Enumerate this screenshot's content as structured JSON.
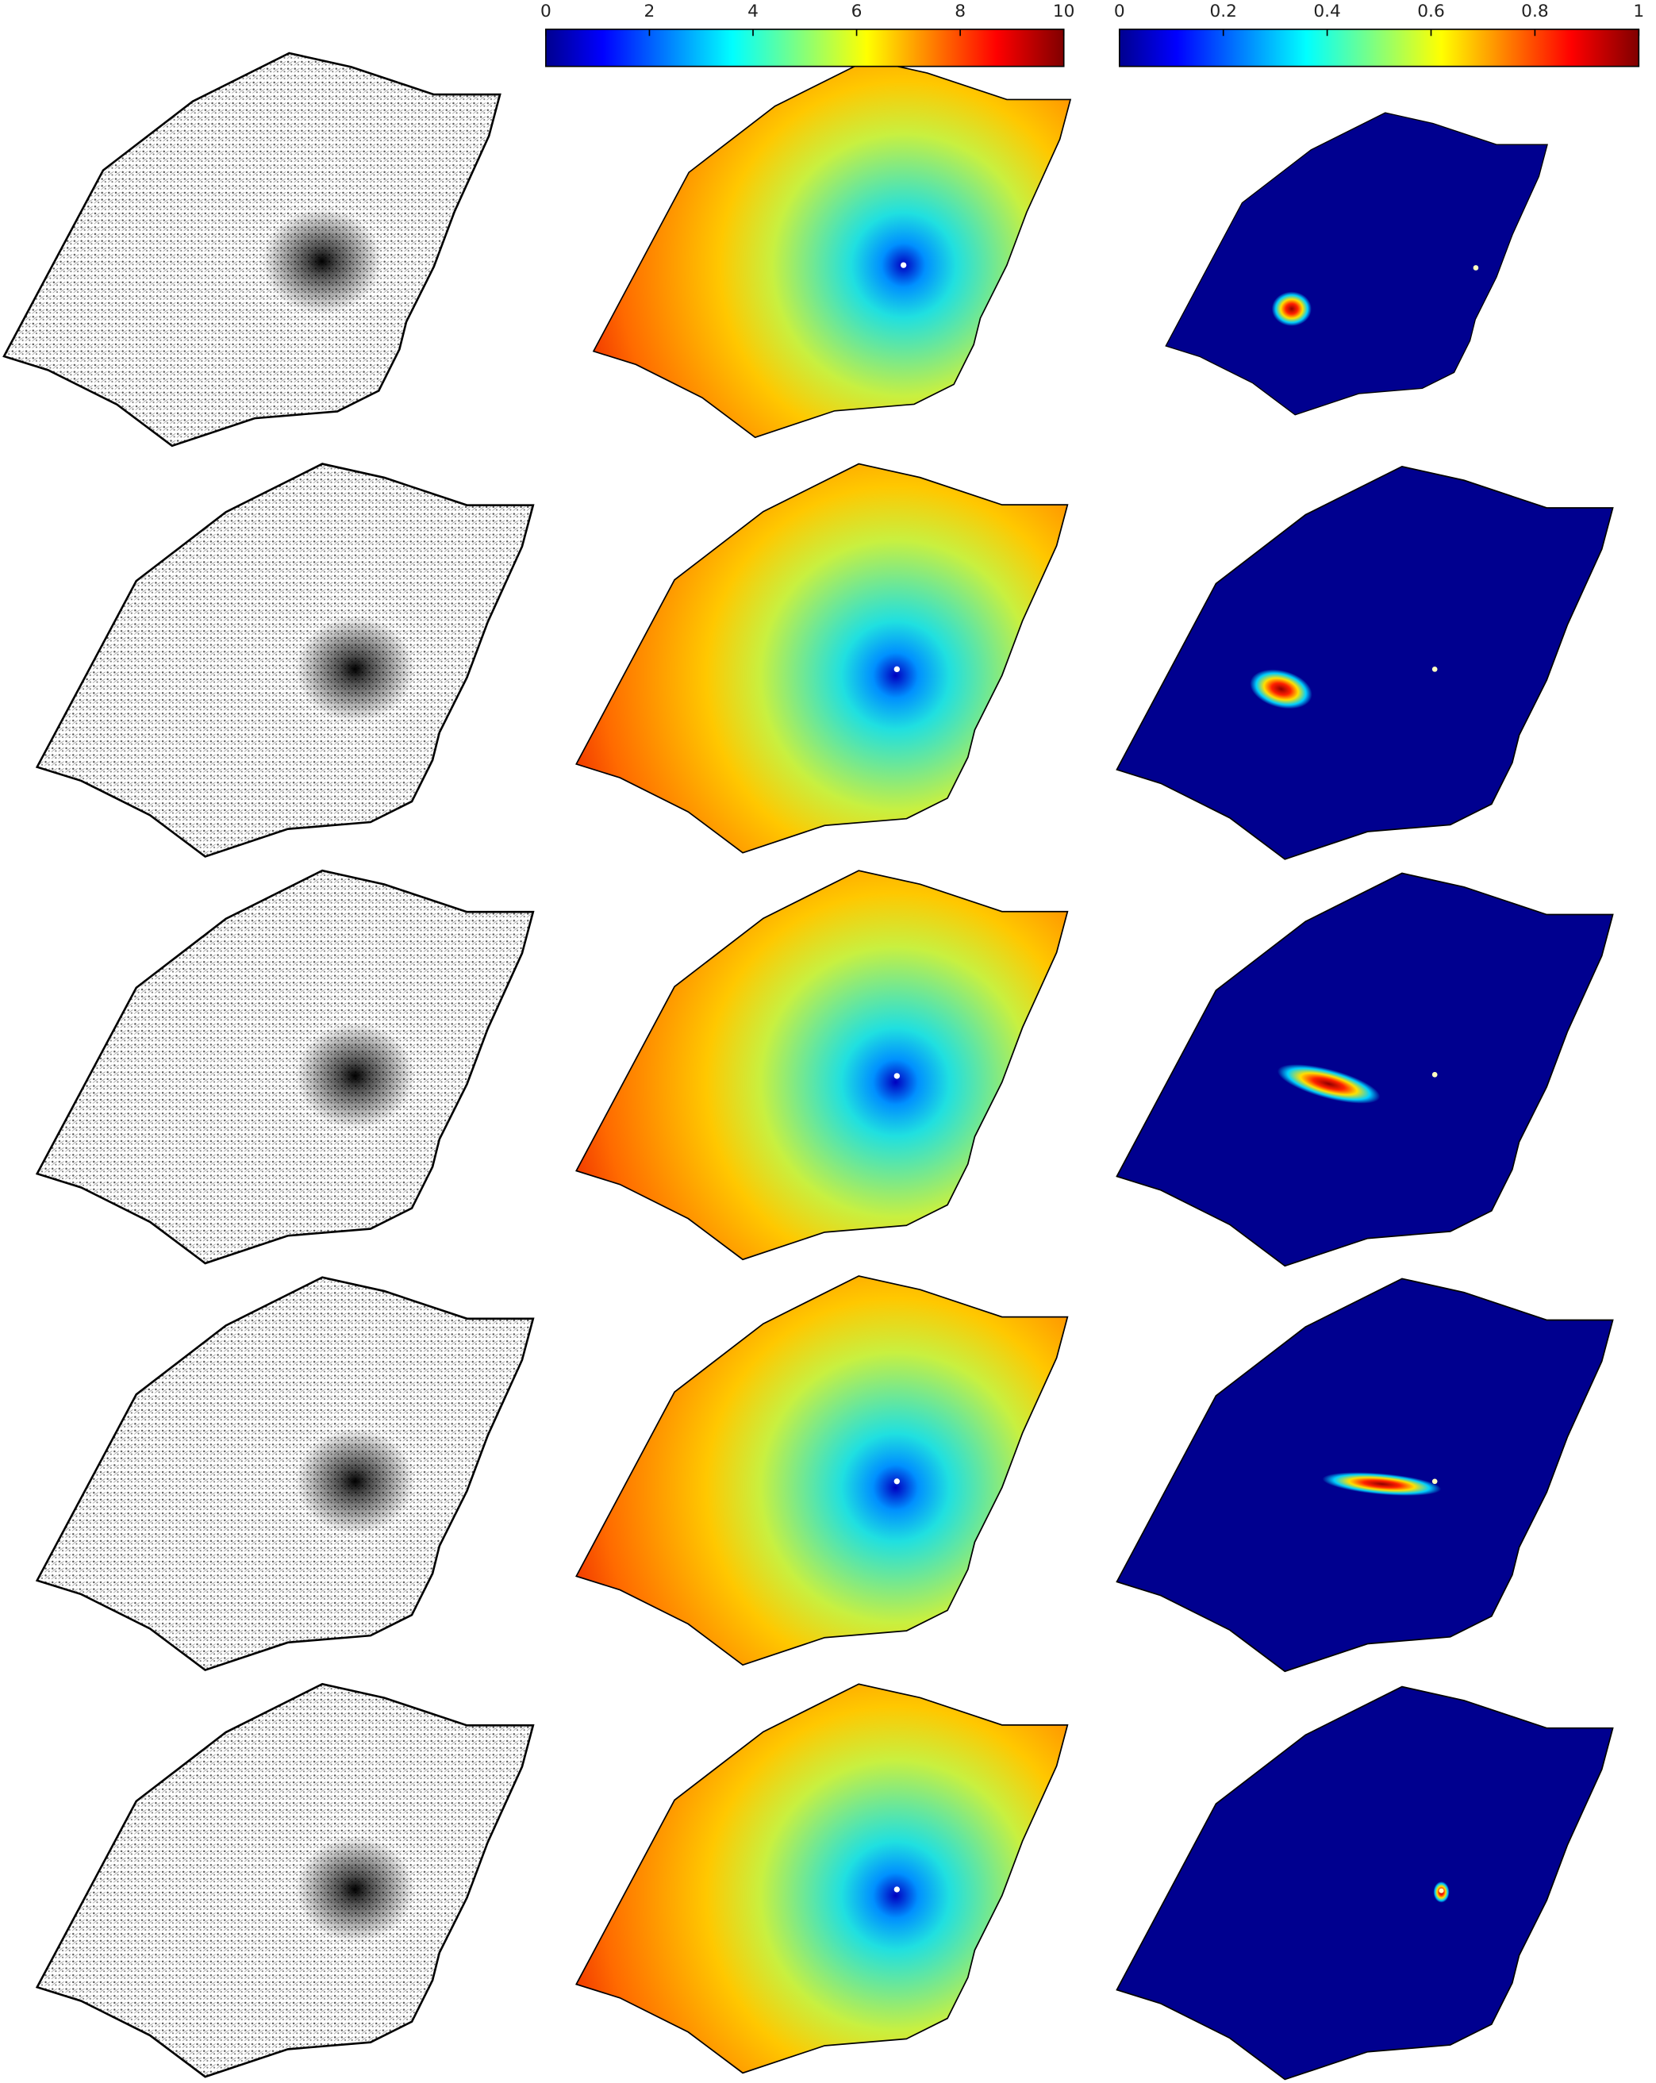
{
  "colorbars": [
    {
      "lim": [
        0,
        10
      ],
      "ticks": [
        0,
        2,
        4,
        6,
        8,
        10
      ]
    },
    {
      "lim": [
        0,
        1
      ],
      "ticks": [
        0,
        0.2,
        0.4,
        0.6,
        0.8,
        1
      ]
    }
  ]
}
